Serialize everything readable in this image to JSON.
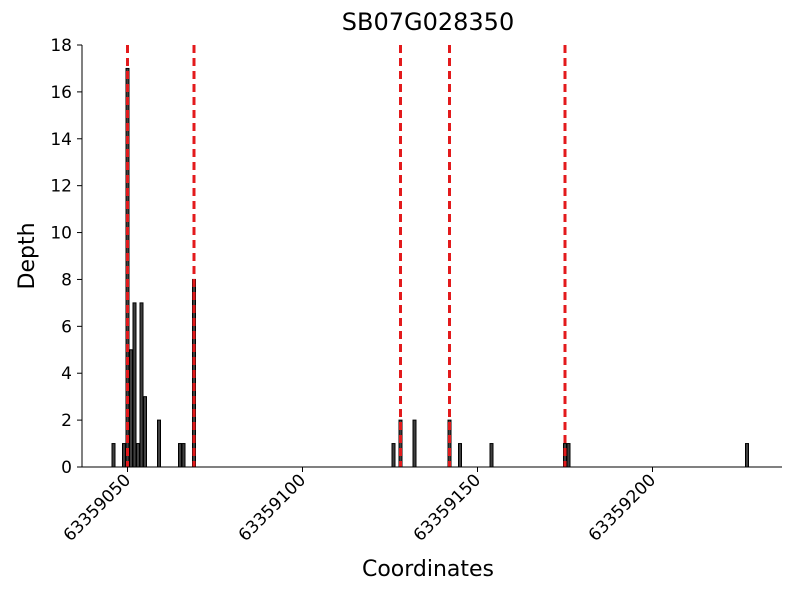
{
  "chart_data": {
    "type": "bar",
    "title": "SB07G028350",
    "xlabel": "Coordinates",
    "ylabel": "Depth",
    "x": [
      63359046,
      63359049,
      63359050,
      63359051,
      63359052,
      63359053,
      63359054,
      63359055,
      63359059,
      63359065,
      63359066,
      63359069,
      63359126,
      63359128,
      63359132,
      63359142,
      63359145,
      63359154,
      63359175,
      63359176,
      63359227
    ],
    "values": [
      1,
      1,
      17,
      5,
      7,
      1,
      7,
      3,
      2,
      1,
      1,
      8,
      1,
      2,
      2,
      2,
      1,
      1,
      1,
      1,
      1
    ],
    "color": "#404040",
    "vlines": [
      63359050,
      63359069,
      63359128,
      63359142,
      63359175
    ],
    "vline_color": "#e31a1c",
    "xlim": [
      63359037,
      63359237
    ],
    "xticks": [
      63359050,
      63359100,
      63359150,
      63359200
    ],
    "ylim": [
      0,
      18
    ],
    "yticks": [
      0,
      2,
      4,
      6,
      8,
      10,
      12,
      14,
      16,
      18
    ]
  }
}
